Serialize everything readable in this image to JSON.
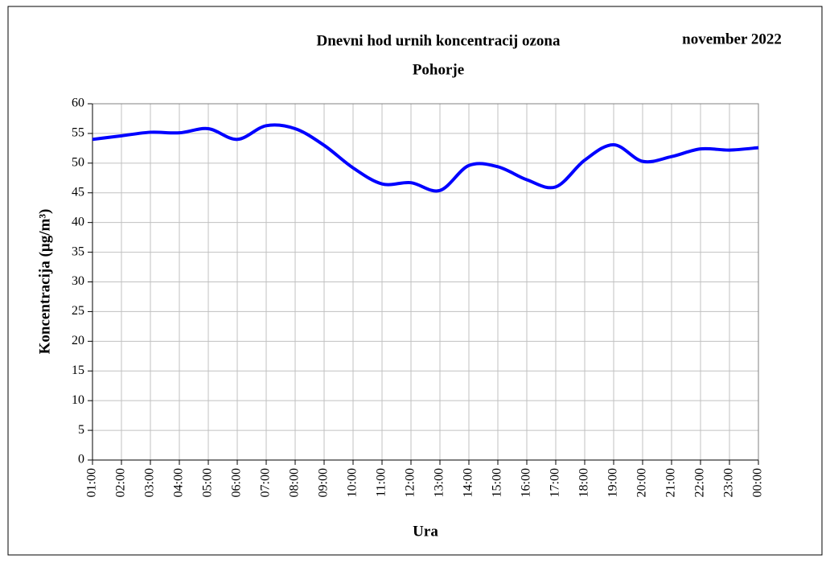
{
  "chart_data": {
    "type": "line",
    "title": "Dnevni hod urnih koncentracij ozona",
    "subtitle": "Pohorje",
    "period": "november 2022",
    "x_label": "Ura",
    "y_label": "Koncentracija (µg/m³)",
    "categories": [
      "01:00",
      "02:00",
      "03:00",
      "04:00",
      "05:00",
      "06:00",
      "07:00",
      "08:00",
      "09:00",
      "10:00",
      "11:00",
      "12:00",
      "13:00",
      "14:00",
      "15:00",
      "16:00",
      "17:00",
      "18:00",
      "19:00",
      "20:00",
      "21:00",
      "22:00",
      "23:00",
      "00:00"
    ],
    "series": [
      {
        "color": "#0000ff",
        "values": [
          54,
          54.6,
          55.2,
          55.1,
          55.8,
          54,
          56.3,
          55.8,
          53,
          49.2,
          46.5,
          46.7,
          45.4,
          49.6,
          49.4,
          47.2,
          46,
          50.5,
          53.1,
          50.3,
          51.1,
          52.4,
          52.2,
          52.6
        ]
      }
    ],
    "ylim": [
      0,
      60
    ],
    "yticks": [
      0,
      5,
      10,
      15,
      20,
      25,
      30,
      35,
      40,
      45,
      50,
      55,
      60
    ],
    "grid": true,
    "smooth": true
  }
}
